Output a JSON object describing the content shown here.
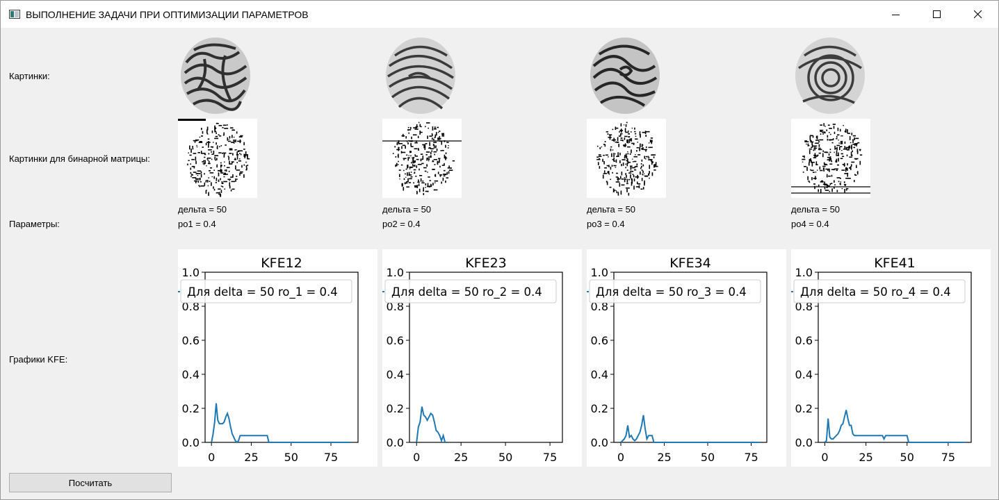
{
  "window": {
    "title": "ВЫПОЛНЕНИЕ ЗАДАЧИ ПРИ ОПТИМИЗАЦИИ ПАРАМЕТРОВ",
    "icons": {
      "app": "app-icon",
      "minimize": "minimize-icon",
      "maximize": "maximize-icon",
      "close": "close-icon"
    }
  },
  "labels": {
    "pictures": "Картинки:",
    "binary_pictures": "Картинки для бинарной матрицы:",
    "parameters": "Параметры:",
    "kfe_graphs": "Графики KFE:"
  },
  "params": [
    {
      "delta": "дельта = 50",
      "ro": "ро1 = 0.4"
    },
    {
      "delta": "дельта = 50",
      "ro": "ро2 = 0.4"
    },
    {
      "delta": "дельта = 50",
      "ro": "ро3 = 0.4"
    },
    {
      "delta": "дельта = 50",
      "ro": "ро4 = 0.4"
    }
  ],
  "button": {
    "calculate": "Посчитать"
  },
  "colors": {
    "line": "#1f77b4",
    "window_bg": "#f0f0f0"
  },
  "chart_data": [
    {
      "type": "line",
      "title": "KFE12",
      "x": [
        0,
        1,
        2,
        3,
        4,
        5,
        6,
        7,
        8,
        9,
        10,
        11,
        12,
        13,
        14,
        15,
        16,
        17,
        18,
        19,
        20,
        25,
        30,
        35,
        36,
        40,
        50,
        60,
        70,
        80,
        87
      ],
      "y": [
        0,
        0.05,
        0.12,
        0.23,
        0.13,
        0.11,
        0.11,
        0.11,
        0.12,
        0.15,
        0.17,
        0.14,
        0.09,
        0.05,
        0.03,
        0.01,
        0.0,
        0.01,
        0.04,
        0.04,
        0.04,
        0.04,
        0.04,
        0.04,
        0,
        0,
        0,
        0,
        0,
        0,
        0
      ],
      "series_name": "Для delta = 50 ro_1 = 0.4",
      "xticks": [
        0,
        25,
        50,
        75
      ],
      "yticks": [
        "0.0",
        "0.2",
        "0.4",
        "0.6",
        "0.8",
        "1.0"
      ],
      "xlim": [
        -4,
        92
      ],
      "ylim": [
        0,
        1.0
      ]
    },
    {
      "type": "line",
      "title": "KFE23",
      "x": [
        0,
        1,
        2,
        3,
        4,
        5,
        6,
        7,
        8,
        9,
        10,
        11,
        12,
        13,
        14,
        15,
        16,
        17
      ],
      "y": [
        0,
        0.09,
        0.12,
        0.21,
        0.16,
        0.15,
        0.13,
        0.15,
        0.17,
        0.16,
        0.12,
        0.07,
        0.06,
        0.04,
        0.01,
        0.04,
        0.0,
        0.0
      ],
      "series_name": "Для delta = 50 ro_2 = 0.4",
      "xticks": [
        0,
        25,
        50,
        75
      ],
      "yticks": [
        "0.0",
        "0.2",
        "0.4",
        "0.6",
        "0.8",
        "1.0"
      ],
      "xlim": [
        -4,
        82
      ],
      "ylim": [
        0,
        1.0
      ]
    },
    {
      "type": "line",
      "title": "KFE34",
      "x": [
        0,
        1,
        2,
        3,
        4,
        5,
        6,
        7,
        8,
        9,
        10,
        11,
        12,
        13,
        14,
        15,
        16,
        17,
        18,
        19,
        20,
        25,
        30,
        40,
        50,
        60,
        70,
        80
      ],
      "y": [
        0,
        0.01,
        0.02,
        0.04,
        0.1,
        0.03,
        0.04,
        0.02,
        0.01,
        0.02,
        0.04,
        0.06,
        0.1,
        0.16,
        0.08,
        0.02,
        0.04,
        0.04,
        0.04,
        0.0,
        0.0,
        0,
        0,
        0,
        0,
        0,
        0,
        0
      ],
      "series_name": "Для delta = 50 ro_3 = 0.4",
      "xticks": [
        0,
        25,
        50,
        75
      ],
      "yticks": [
        "0.0",
        "0.2",
        "0.4",
        "0.6",
        "0.8",
        "1.0"
      ],
      "xlim": [
        -4,
        84
      ],
      "ylim": [
        0,
        1.0
      ]
    },
    {
      "type": "line",
      "title": "KFE41",
      "x": [
        0,
        1,
        2,
        3,
        4,
        5,
        6,
        7,
        8,
        9,
        10,
        11,
        12,
        13,
        14,
        15,
        16,
        17,
        18,
        20,
        25,
        30,
        35,
        36,
        37,
        40,
        45,
        50,
        51,
        52,
        60,
        70,
        80,
        85
      ],
      "y": [
        0,
        0.01,
        0.14,
        0.03,
        0.02,
        0.02,
        0.03,
        0.04,
        0.05,
        0.07,
        0.1,
        0.11,
        0.15,
        0.19,
        0.14,
        0.1,
        0.1,
        0.05,
        0.04,
        0.04,
        0.04,
        0.04,
        0.04,
        0.02,
        0.04,
        0.04,
        0.04,
        0.04,
        0.0,
        0.0,
        0,
        0,
        0,
        0
      ],
      "series_name": "Для delta = 50 ro_4 = 0.4",
      "xticks": [
        0,
        25,
        50,
        75
      ],
      "yticks": [
        "0.0",
        "0.2",
        "0.4",
        "0.6",
        "0.8",
        "1.0"
      ],
      "xlim": [
        -4,
        89
      ],
      "ylim": [
        0,
        1.0
      ]
    }
  ]
}
